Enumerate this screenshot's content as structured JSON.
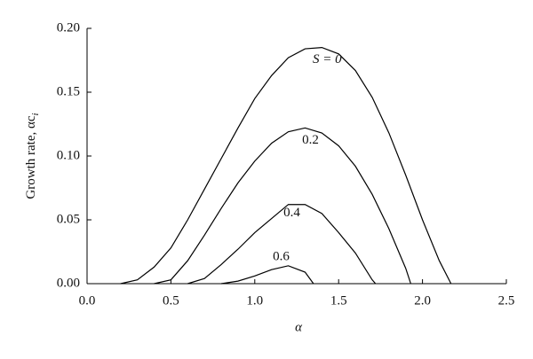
{
  "chart_data": {
    "type": "line",
    "xlabel": "α",
    "ylabel": "Growth rate, αc",
    "ylabel_subscript": "i",
    "xlim": [
      0,
      2.5
    ],
    "ylim": [
      0,
      0.2
    ],
    "xticks": [
      {
        "value": 0,
        "label": "0.0"
      },
      0.5,
      {
        "value": 1,
        "label": "1.0"
      },
      1.5,
      {
        "value": 2,
        "label": "2.0"
      },
      2.5
    ],
    "yticks": [
      {
        "value": 0,
        "label": "0.00"
      },
      0.05,
      {
        "value": 0.1,
        "label": "0.10"
      },
      0.15,
      {
        "value": 0.2,
        "label": "0.20"
      }
    ],
    "series": [
      {
        "name": "S = 0",
        "color": "#000000",
        "x": [
          0.2,
          0.3,
          0.4,
          0.5,
          0.6,
          0.7,
          0.8,
          0.9,
          1.0,
          1.1,
          1.2,
          1.3,
          1.4,
          1.5,
          1.6,
          1.7,
          1.8,
          1.9,
          2.0,
          2.1,
          2.17
        ],
        "values": [
          0,
          0.003,
          0.013,
          0.028,
          0.05,
          0.074,
          0.098,
          0.122,
          0.145,
          0.163,
          0.177,
          0.184,
          0.185,
          0.18,
          0.167,
          0.146,
          0.118,
          0.085,
          0.05,
          0.018,
          0
        ]
      },
      {
        "name": "0.2",
        "color": "#000000",
        "x": [
          0.4,
          0.5,
          0.6,
          0.7,
          0.8,
          0.9,
          1.0,
          1.1,
          1.2,
          1.3,
          1.4,
          1.5,
          1.6,
          1.7,
          1.8,
          1.9,
          1.93
        ],
        "values": [
          0,
          0.003,
          0.018,
          0.038,
          0.059,
          0.079,
          0.096,
          0.11,
          0.119,
          0.122,
          0.118,
          0.108,
          0.092,
          0.07,
          0.043,
          0.012,
          0
        ]
      },
      {
        "name": "0.4",
        "color": "#000000",
        "x": [
          0.6,
          0.7,
          0.8,
          0.9,
          1.0,
          1.1,
          1.2,
          1.3,
          1.4,
          1.5,
          1.6,
          1.7,
          1.72
        ],
        "values": [
          0,
          0.004,
          0.015,
          0.027,
          0.04,
          0.051,
          0.062,
          0.062,
          0.055,
          0.04,
          0.024,
          0.003,
          0
        ]
      },
      {
        "name": "0.6",
        "color": "#000000",
        "x": [
          0.8,
          0.9,
          1.0,
          1.1,
          1.2,
          1.3,
          1.35
        ],
        "values": [
          0,
          0.002,
          0.006,
          0.011,
          0.014,
          0.009,
          0
        ]
      }
    ]
  }
}
